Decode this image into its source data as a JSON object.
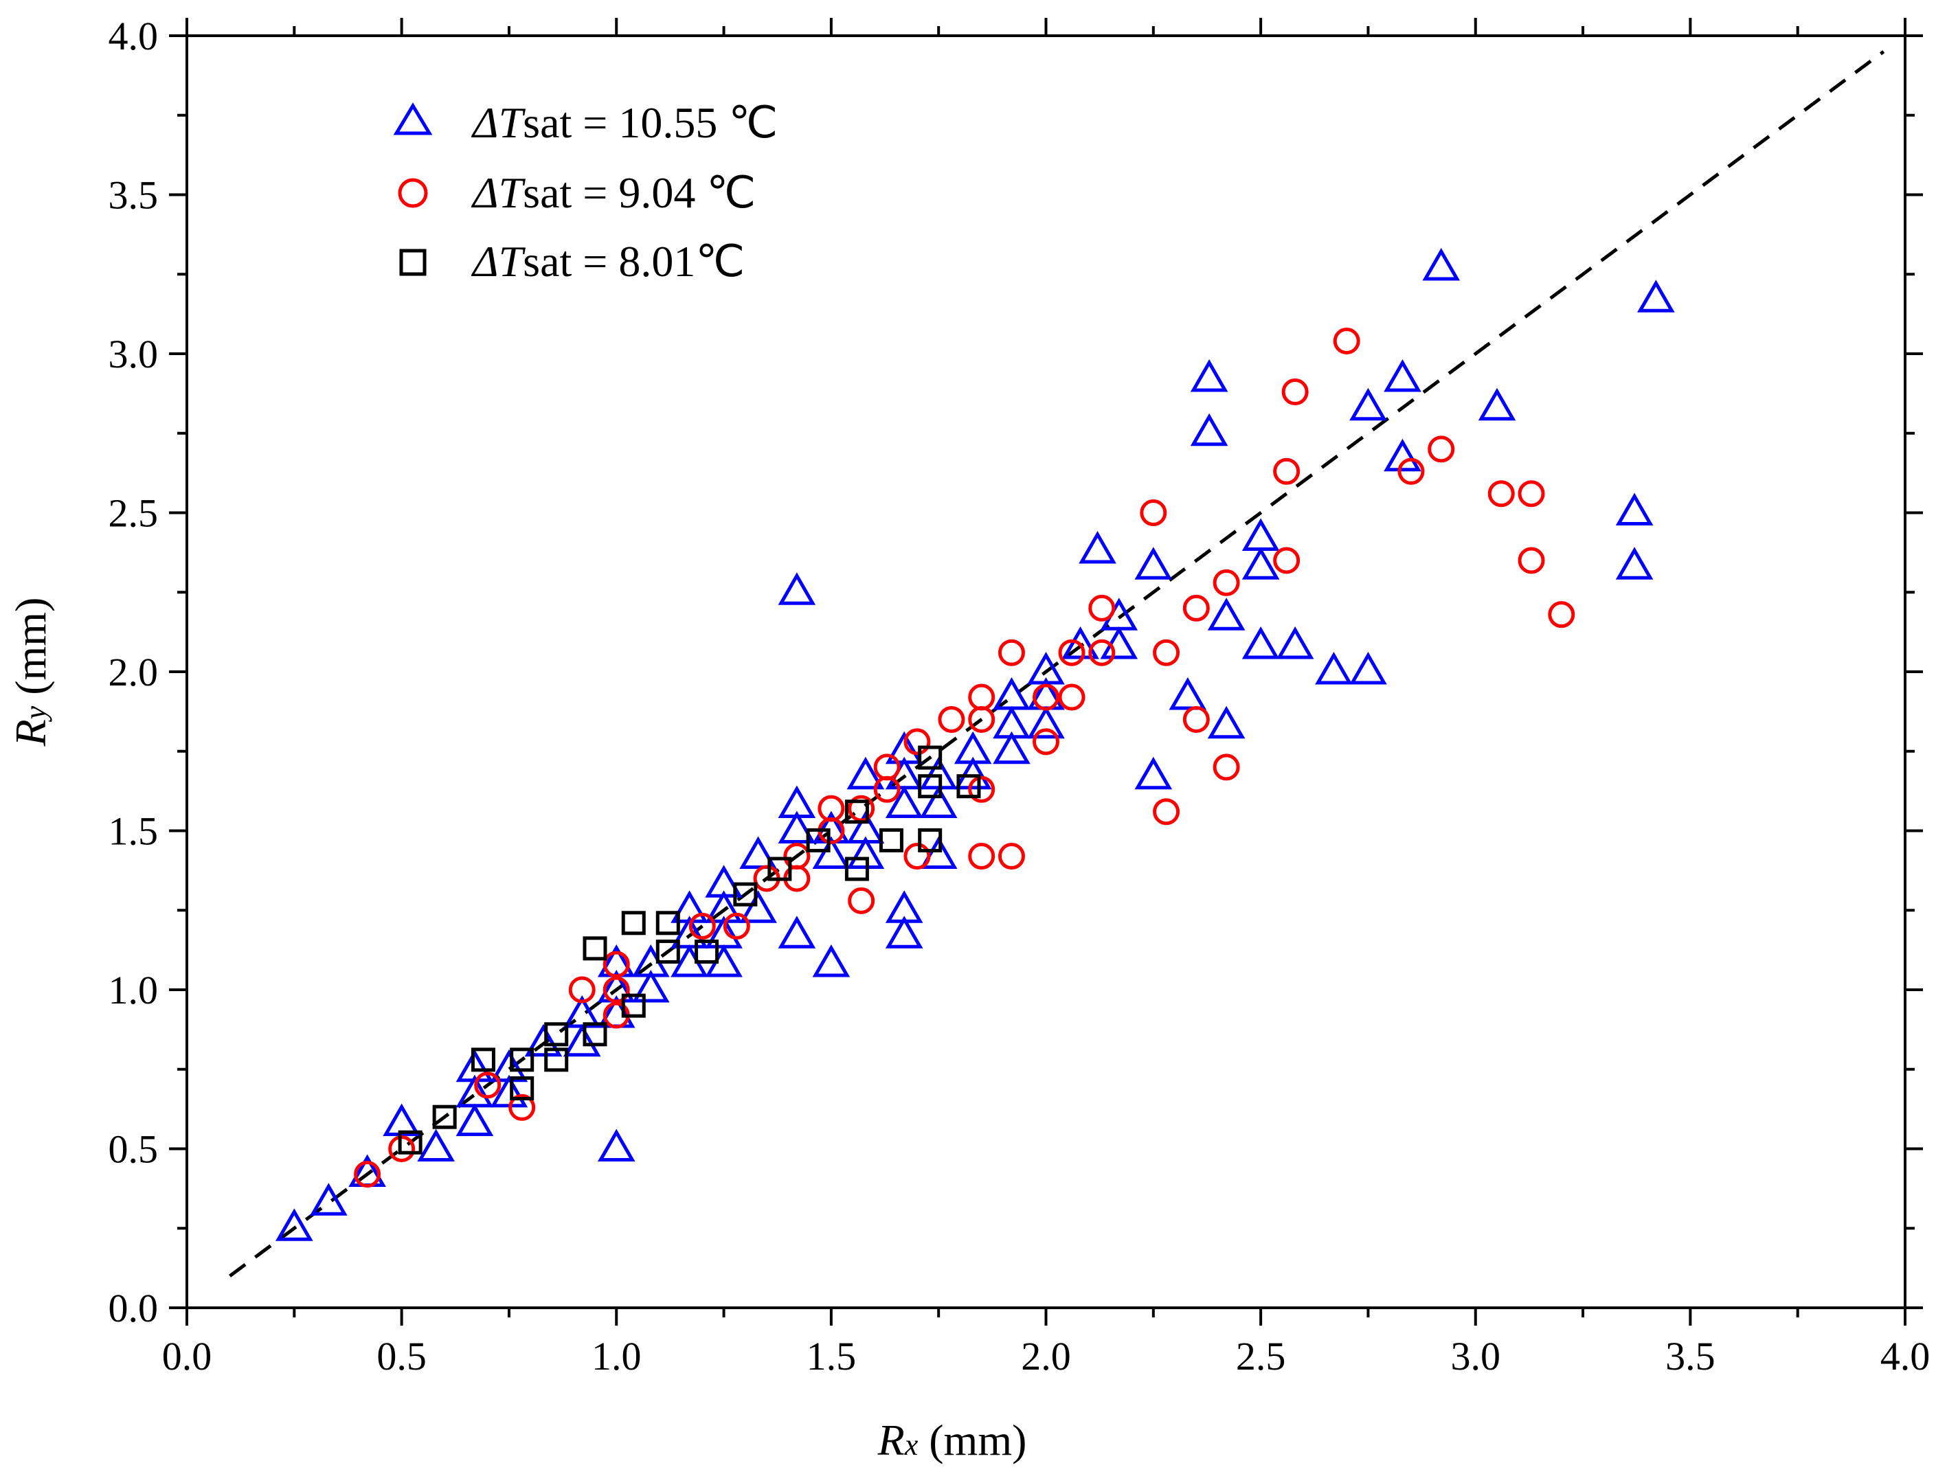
{
  "chart_data": {
    "type": "scatter",
    "title": "",
    "xlabel": "Rx (mm)",
    "ylabel": "Ry (mm)",
    "xlabel_parts": {
      "symbol": "R",
      "sub": "x",
      "unit": " (mm)"
    },
    "ylabel_parts": {
      "symbol": "R",
      "sub": "y",
      "unit": " (mm)"
    },
    "xlim": [
      0.0,
      4.0
    ],
    "ylim": [
      0.0,
      4.0
    ],
    "xticks": [
      "0.0",
      "0.5",
      "1.0",
      "1.5",
      "2.0",
      "2.5",
      "3.0",
      "3.5",
      "4.0"
    ],
    "yticks": [
      "0.0",
      "0.5",
      "1.0",
      "1.5",
      "2.0",
      "2.5",
      "3.0",
      "3.5",
      "4.0"
    ],
    "grid": false,
    "legend_position": "top-left",
    "reference_line": {
      "style": "dashed",
      "color": "#000000",
      "x": [
        0.1,
        3.95
      ],
      "y": [
        0.1,
        3.95
      ]
    },
    "series": [
      {
        "name": "ΔTsat = 10.55 ℃",
        "label_parts": {
          "delta": "Δ",
          "T": "T",
          "sub": "sat",
          "rest": " = 10.55 ℃"
        },
        "marker": "triangle",
        "color": "#0000FF",
        "points": [
          [
            0.25,
            0.25
          ],
          [
            0.33,
            0.33
          ],
          [
            0.42,
            0.42
          ],
          [
            0.5,
            0.58
          ],
          [
            0.58,
            0.5
          ],
          [
            0.67,
            0.58
          ],
          [
            0.67,
            0.67
          ],
          [
            0.67,
            0.75
          ],
          [
            0.75,
            0.67
          ],
          [
            0.75,
            0.75
          ],
          [
            0.83,
            0.83
          ],
          [
            0.92,
            0.83
          ],
          [
            0.92,
            0.92
          ],
          [
            1.0,
            0.92
          ],
          [
            1.0,
            1.0
          ],
          [
            1.0,
            1.08
          ],
          [
            1.0,
            0.5
          ],
          [
            1.08,
            1.0
          ],
          [
            1.08,
            1.08
          ],
          [
            1.17,
            1.08
          ],
          [
            1.17,
            1.17
          ],
          [
            1.17,
            1.25
          ],
          [
            1.25,
            1.08
          ],
          [
            1.25,
            1.17
          ],
          [
            1.25,
            1.25
          ],
          [
            1.25,
            1.33
          ],
          [
            1.33,
            1.25
          ],
          [
            1.33,
            1.42
          ],
          [
            1.42,
            1.17
          ],
          [
            1.42,
            1.5
          ],
          [
            1.42,
            1.58
          ],
          [
            1.42,
            2.25
          ],
          [
            1.5,
            1.08
          ],
          [
            1.5,
            1.42
          ],
          [
            1.5,
            1.5
          ],
          [
            1.58,
            1.42
          ],
          [
            1.58,
            1.5
          ],
          [
            1.58,
            1.67
          ],
          [
            1.67,
            1.17
          ],
          [
            1.67,
            1.25
          ],
          [
            1.67,
            1.58
          ],
          [
            1.67,
            1.67
          ],
          [
            1.67,
            1.75
          ],
          [
            1.75,
            1.42
          ],
          [
            1.75,
            1.58
          ],
          [
            1.75,
            1.67
          ],
          [
            1.83,
            1.67
          ],
          [
            1.83,
            1.75
          ],
          [
            1.92,
            1.75
          ],
          [
            1.92,
            1.83
          ],
          [
            1.92,
            1.92
          ],
          [
            2.0,
            1.83
          ],
          [
            2.0,
            1.92
          ],
          [
            2.0,
            2.0
          ],
          [
            2.08,
            2.08
          ],
          [
            2.12,
            2.38
          ],
          [
            2.17,
            2.08
          ],
          [
            2.17,
            2.17
          ],
          [
            2.25,
            1.67
          ],
          [
            2.25,
            2.33
          ],
          [
            2.33,
            1.92
          ],
          [
            2.38,
            2.75
          ],
          [
            2.38,
            2.92
          ],
          [
            2.42,
            1.83
          ],
          [
            2.42,
            2.17
          ],
          [
            2.5,
            2.08
          ],
          [
            2.5,
            2.33
          ],
          [
            2.5,
            2.42
          ],
          [
            2.58,
            2.08
          ],
          [
            2.67,
            2.0
          ],
          [
            2.75,
            2.0
          ],
          [
            2.75,
            2.83
          ],
          [
            2.83,
            2.67
          ],
          [
            2.83,
            2.92
          ],
          [
            2.92,
            3.27
          ],
          [
            3.05,
            2.83
          ],
          [
            3.37,
            2.33
          ],
          [
            3.37,
            2.5
          ],
          [
            3.42,
            3.17
          ]
        ]
      },
      {
        "name": "ΔTsat = 9.04 ℃",
        "label_parts": {
          "delta": "Δ",
          "T": "T",
          "sub": "sat",
          "rest": " = 9.04 ℃"
        },
        "marker": "circle",
        "color": "#FF0000",
        "points": [
          [
            0.42,
            0.42
          ],
          [
            0.5,
            0.5
          ],
          [
            0.7,
            0.7
          ],
          [
            0.78,
            0.63
          ],
          [
            0.92,
            1.0
          ],
          [
            1.0,
            0.92
          ],
          [
            1.0,
            1.0
          ],
          [
            1.0,
            1.08
          ],
          [
            1.2,
            1.2
          ],
          [
            1.28,
            1.2
          ],
          [
            1.35,
            1.35
          ],
          [
            1.42,
            1.35
          ],
          [
            1.42,
            1.42
          ],
          [
            1.5,
            1.5
          ],
          [
            1.5,
            1.57
          ],
          [
            1.57,
            1.28
          ],
          [
            1.57,
            1.57
          ],
          [
            1.63,
            1.63
          ],
          [
            1.63,
            1.7
          ],
          [
            1.7,
            1.42
          ],
          [
            1.7,
            1.78
          ],
          [
            1.78,
            1.85
          ],
          [
            1.85,
            1.42
          ],
          [
            1.85,
            1.63
          ],
          [
            1.85,
            1.85
          ],
          [
            1.85,
            1.92
          ],
          [
            1.92,
            1.42
          ],
          [
            1.92,
            2.06
          ],
          [
            2.0,
            1.78
          ],
          [
            2.0,
            1.92
          ],
          [
            2.06,
            1.92
          ],
          [
            2.06,
            2.06
          ],
          [
            2.13,
            2.06
          ],
          [
            2.13,
            2.2
          ],
          [
            2.25,
            2.5
          ],
          [
            2.28,
            1.56
          ],
          [
            2.28,
            2.06
          ],
          [
            2.35,
            1.85
          ],
          [
            2.35,
            2.2
          ],
          [
            2.42,
            1.7
          ],
          [
            2.42,
            2.28
          ],
          [
            2.56,
            2.35
          ],
          [
            2.56,
            2.63
          ],
          [
            2.58,
            2.88
          ],
          [
            2.7,
            3.04
          ],
          [
            2.85,
            2.63
          ],
          [
            2.92,
            2.7
          ],
          [
            3.06,
            2.56
          ],
          [
            3.13,
            2.35
          ],
          [
            3.13,
            2.56
          ],
          [
            3.2,
            2.18
          ]
        ]
      },
      {
        "name": "ΔTsat = 8.01℃",
        "label_parts": {
          "delta": "Δ",
          "T": "T",
          "sub": "sat",
          "rest": " = 8.01℃"
        },
        "marker": "square",
        "color": "#000000",
        "points": [
          [
            0.52,
            0.52
          ],
          [
            0.6,
            0.6
          ],
          [
            0.69,
            0.78
          ],
          [
            0.78,
            0.69
          ],
          [
            0.78,
            0.78
          ],
          [
            0.86,
            0.78
          ],
          [
            0.86,
            0.86
          ],
          [
            0.95,
            0.86
          ],
          [
            0.95,
            1.13
          ],
          [
            1.04,
            0.95
          ],
          [
            1.04,
            1.21
          ],
          [
            1.12,
            1.12
          ],
          [
            1.12,
            1.21
          ],
          [
            1.21,
            1.12
          ],
          [
            1.3,
            1.3
          ],
          [
            1.38,
            1.38
          ],
          [
            1.47,
            1.47
          ],
          [
            1.56,
            1.38
          ],
          [
            1.56,
            1.56
          ],
          [
            1.64,
            1.47
          ],
          [
            1.73,
            1.47
          ],
          [
            1.73,
            1.64
          ],
          [
            1.73,
            1.73
          ],
          [
            1.82,
            1.64
          ]
        ]
      }
    ]
  }
}
